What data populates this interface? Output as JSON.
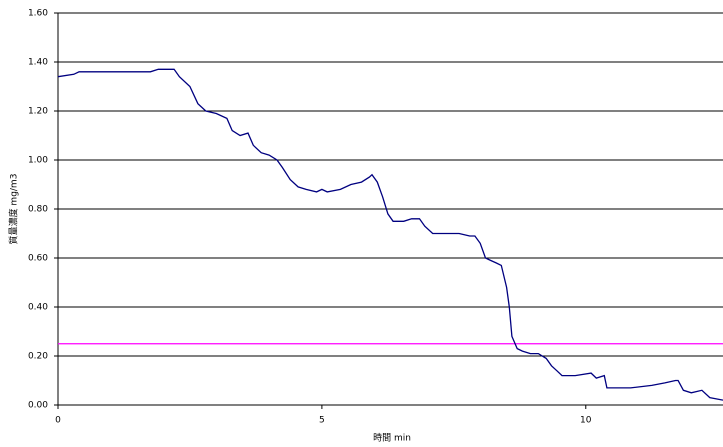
{
  "chart_data": {
    "type": "line",
    "xlabel": "時間  min",
    "ylabel": "質量濃度  mg/m3",
    "x": [
      0,
      0.3,
      0.4,
      0.8,
      1.75,
      1.9,
      2.2,
      2.3,
      2.5,
      2.65,
      2.8,
      3.0,
      3.2,
      3.3,
      3.45,
      3.6,
      3.7,
      3.85,
      4.0,
      4.15,
      4.25,
      4.4,
      4.55,
      4.7,
      4.9,
      5.0,
      5.1,
      5.35,
      5.55,
      5.75,
      5.9,
      5.95,
      6.05,
      6.15,
      6.25,
      6.35,
      6.55,
      6.7,
      6.85,
      6.95,
      7.1,
      7.35,
      7.55,
      7.6,
      7.8,
      7.9,
      8.0,
      8.1,
      8.2,
      8.3,
      8.4,
      8.5,
      8.55,
      8.6,
      8.7,
      8.8,
      8.95,
      9.1,
      9.25,
      9.35,
      9.45,
      9.55,
      9.8,
      10.1,
      10.2,
      10.35,
      10.4,
      10.55,
      10.85,
      11.25,
      11.5,
      11.7,
      11.75,
      11.85,
      12.0,
      12.2,
      12.35,
      12.6
    ],
    "series": [
      {
        "name": "質量濃度",
        "color": "#000080",
        "values": [
          1.34,
          1.35,
          1.36,
          1.36,
          1.36,
          1.37,
          1.37,
          1.34,
          1.3,
          1.23,
          1.2,
          1.19,
          1.17,
          1.12,
          1.1,
          1.11,
          1.06,
          1.03,
          1.02,
          1.0,
          0.97,
          0.92,
          0.89,
          0.88,
          0.87,
          0.88,
          0.87,
          0.88,
          0.9,
          0.91,
          0.93,
          0.94,
          0.91,
          0.85,
          0.78,
          0.75,
          0.75,
          0.76,
          0.76,
          0.73,
          0.7,
          0.7,
          0.7,
          0.7,
          0.69,
          0.69,
          0.66,
          0.6,
          0.59,
          0.58,
          0.57,
          0.48,
          0.4,
          0.28,
          0.23,
          0.22,
          0.21,
          0.21,
          0.19,
          0.16,
          0.14,
          0.12,
          0.12,
          0.13,
          0.11,
          0.12,
          0.07,
          0.07,
          0.07,
          0.08,
          0.09,
          0.1,
          0.1,
          0.06,
          0.05,
          0.06,
          0.03,
          0.02
        ]
      }
    ],
    "reference_line": {
      "value": 0.25,
      "color": "#ff00ff"
    },
    "xlim": [
      0,
      12.6
    ],
    "xticks": [
      0,
      5,
      10
    ],
    "ylim": [
      0,
      1.6
    ],
    "yticks": [
      {
        "value": 0,
        "label": "0.00"
      },
      {
        "value": 0.2,
        "label": "0.20"
      },
      {
        "value": 0.4,
        "label": "0.40"
      },
      {
        "value": 0.6,
        "label": "0.60"
      },
      {
        "value": 0.8,
        "label": "0.80"
      },
      {
        "value": 1.0,
        "label": "1.00"
      },
      {
        "value": 1.2,
        "label": "1.20"
      },
      {
        "value": 1.4,
        "label": "1.40"
      },
      {
        "value": 1.6,
        "label": "1.60"
      }
    ],
    "grid": true
  }
}
